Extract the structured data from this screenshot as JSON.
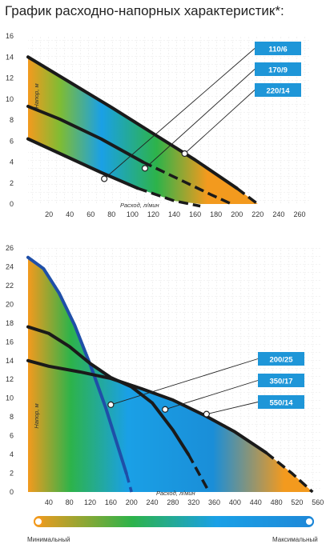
{
  "title": "График расходно-напорных характеристик*:",
  "legend": {
    "min_label": "Минимальный",
    "max_label": "Максимальный"
  },
  "colors": {
    "orange": "#f39a1e",
    "green": "#2db34a",
    "blue": "#1aa0e6",
    "label_bg": "#1e96d8",
    "curve": "#1a1a1a",
    "blue_curve": "#1f4fa8"
  },
  "chart_data": [
    {
      "type": "line",
      "xlabel": "Расход, л/мин",
      "ylabel": "Напор, м",
      "xlim": [
        0,
        270
      ],
      "ylim": [
        0,
        16
      ],
      "xticks": [
        20,
        40,
        60,
        80,
        100,
        120,
        140,
        160,
        180,
        200,
        220,
        240,
        260
      ],
      "yticks": [
        0,
        2,
        4,
        6,
        8,
        10,
        12,
        14,
        16
      ],
      "series": [
        {
          "name": "110/6",
          "x": [
            0,
            35,
            70,
            105,
            140,
            165
          ],
          "y": [
            6.2,
            4.6,
            3.0,
            1.5,
            0.3,
            -0.2
          ],
          "dash_from": 0.55
        },
        {
          "name": "170/9",
          "x": [
            0,
            30,
            70,
            110,
            150,
            175,
            195
          ],
          "y": [
            9.3,
            8.1,
            6.2,
            4.0,
            2.1,
            0.9,
            0
          ],
          "dash_from": 0.55
        },
        {
          "name": "220/14",
          "x": [
            0,
            40,
            80,
            120,
            160,
            200,
            220
          ],
          "y": [
            14.0,
            11.6,
            9.2,
            6.7,
            4.2,
            1.5,
            0
          ],
          "dash_from": 0.0
        }
      ],
      "points": [
        {
          "series": "110/6",
          "x": 73,
          "y": 2.4
        },
        {
          "series": "170/9",
          "x": 112,
          "y": 3.4
        },
        {
          "series": "220/14",
          "x": 150,
          "y": 4.8
        }
      ]
    },
    {
      "type": "line",
      "xlabel": "Расход, л/мин",
      "ylabel": "Напор, м",
      "xlim": [
        0,
        565
      ],
      "ylim": [
        0,
        26
      ],
      "xticks": [
        40,
        80,
        120,
        160,
        200,
        240,
        280,
        320,
        360,
        400,
        440,
        480,
        520,
        560
      ],
      "yticks": [
        0,
        2,
        4,
        6,
        8,
        10,
        12,
        14,
        16,
        18,
        20,
        22,
        24,
        26
      ],
      "series": [
        {
          "name": "200/25",
          "x": [
            0,
            30,
            60,
            90,
            120,
            150,
            170,
            190,
            200
          ],
          "y": [
            25,
            23.8,
            21.2,
            17.8,
            13.6,
            9.0,
            5.5,
            2.0,
            0
          ]
        },
        {
          "name": "350/17",
          "x": [
            0,
            40,
            80,
            120,
            160,
            200,
            240,
            280,
            310,
            330,
            350
          ],
          "y": [
            17.6,
            16.9,
            15.5,
            13.7,
            12.2,
            11.2,
            9.5,
            6.6,
            4.0,
            2.0,
            0
          ]
        },
        {
          "name": "550/14",
          "x": [
            0,
            40,
            100,
            160,
            220,
            280,
            340,
            400,
            460,
            510,
            550
          ],
          "y": [
            14.0,
            13.4,
            12.8,
            12.1,
            11.0,
            9.8,
            8.2,
            6.4,
            4.2,
            2.0,
            0
          ]
        }
      ],
      "points": [
        {
          "series": "200/25",
          "x": 160,
          "y": 9.3
        },
        {
          "series": "350/17",
          "x": 265,
          "y": 8.8
        },
        {
          "series": "550/14",
          "x": 345,
          "y": 8.3
        }
      ]
    }
  ]
}
